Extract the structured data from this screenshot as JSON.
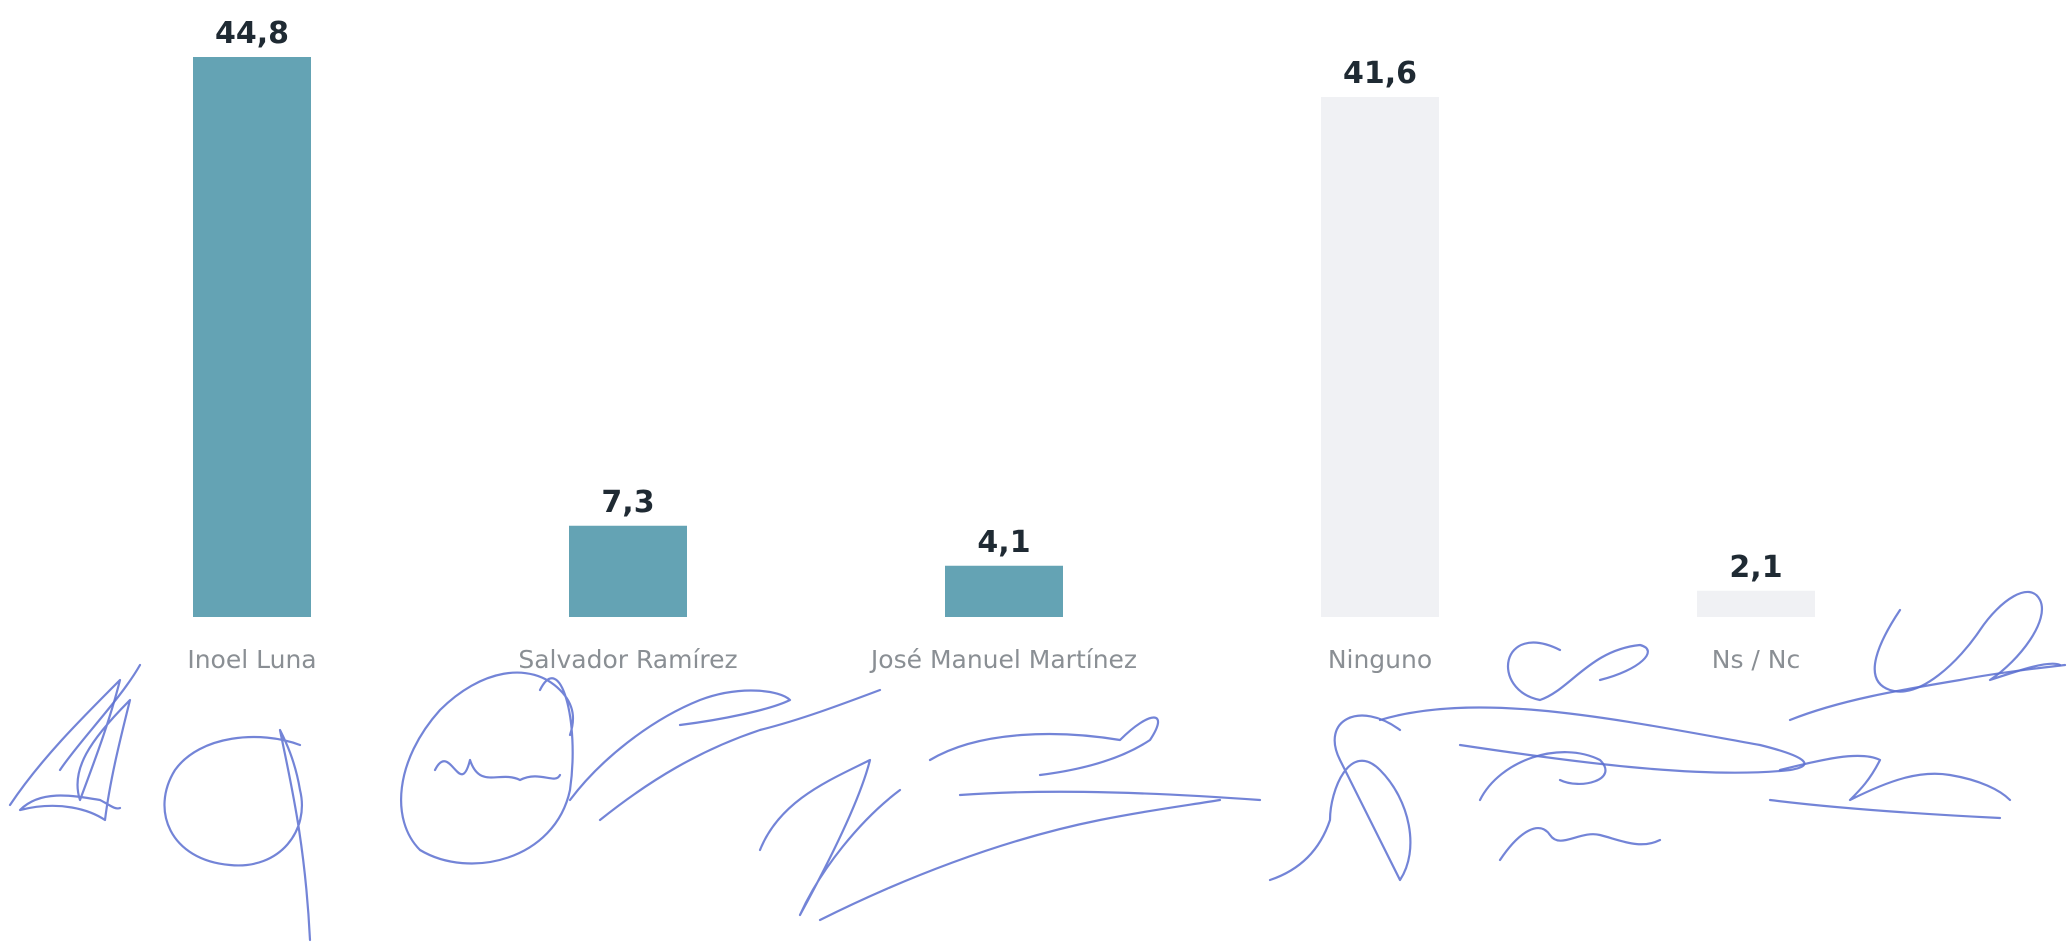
{
  "chart_data": {
    "type": "bar",
    "categories": [
      "Inoel Luna",
      "Salvador Ramírez",
      "José Manuel Martínez",
      "Ninguno",
      "Ns / Nc"
    ],
    "values": [
      44.8,
      7.3,
      4.1,
      41.6,
      2.1
    ],
    "value_labels": [
      "44,8",
      "7,3",
      "4,1",
      "41,6",
      "2,1"
    ],
    "bar_colors": [
      "#64a3b4",
      "#64a3b4",
      "#64a3b4",
      "#f0f1f4",
      "#f0f1f4"
    ],
    "title": "",
    "xlabel": "",
    "ylabel": "",
    "ylim": [
      0,
      44.8
    ],
    "grid": false,
    "legend": "none"
  },
  "signatures_color": "#5b6fd0"
}
